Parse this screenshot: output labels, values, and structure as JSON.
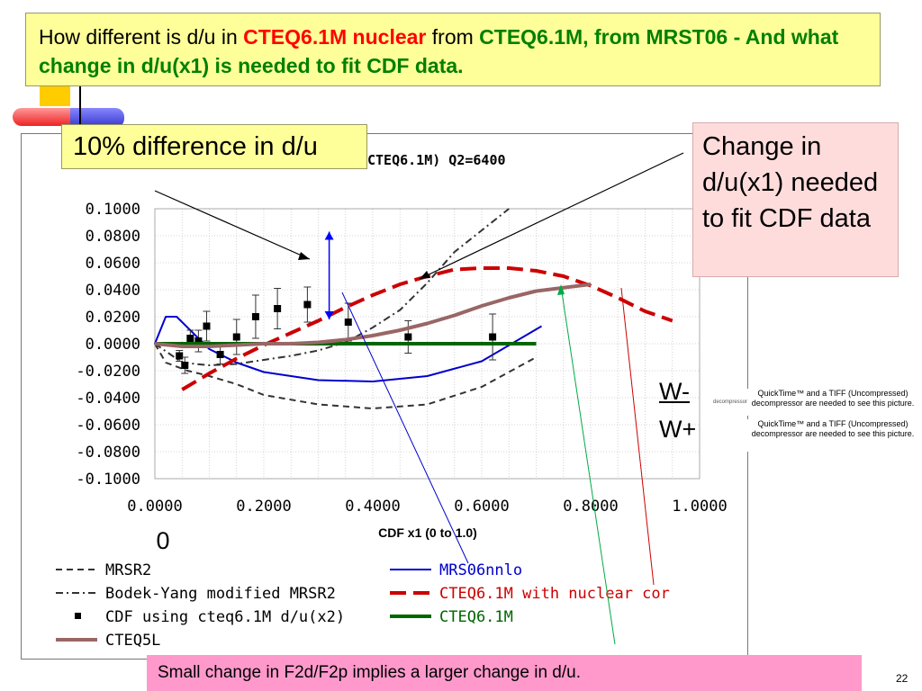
{
  "slide": {
    "title_parts": {
      "p1": "How different is  d/u in ",
      "p2": "CTEQ6.1M nuclear",
      "p3": " from ",
      "p4": "CTEQ6.1M, from MRST06 - And what change in d/u(x1) is needed to fit CDF data."
    },
    "callout_left": "10% difference in d/u",
    "callout_right": "Change in d/u(x1) needed to fit CDF data",
    "bottom_text": "Small change in F2d/F2p implies a larger change in d/u.",
    "w_minus": "W-",
    "w_plus": "W+",
    "quicktime_1": "QuickTime™ and a TIFF (Uncompressed) decompressor are needed to see this picture.",
    "quicktime_2": "QuickTime™ and a TIFF (Uncompressed) decompressor are needed to see this picture.",
    "quicktime_small": "decompressor",
    "page_number": "22",
    "colors": {
      "title_bg": "#ffff99",
      "callout_right_bg": "#ffdcdc",
      "bottom_bg": "#ff99cc"
    }
  },
  "chart_data": {
    "type": "line",
    "title_visible": "CTEQ6.1M) Q2=6400",
    "xlabel": "CDF x1   (0 to 1.0)",
    "xlim": [
      0,
      1
    ],
    "ylim": [
      -0.1,
      0.1
    ],
    "xticks": [
      "0.0000",
      "0.2000",
      "0.4000",
      "0.6000",
      "0.8000",
      "1.0000"
    ],
    "yticks": [
      "0.1000",
      "0.0800",
      "0.0600",
      "0.0400",
      "0.0200",
      "0.0000",
      "-0.0200",
      "-0.0400",
      "-0.0600",
      "-0.0800",
      "-0.1000"
    ],
    "extra_label": "0",
    "grid": true,
    "legend_position": "bottom",
    "series": [
      {
        "name": "MRSR2",
        "style": "dashed",
        "color": "#333333",
        "x": [
          0.0,
          0.02,
          0.06,
          0.1,
          0.15,
          0.2,
          0.3,
          0.4,
          0.5,
          0.6,
          0.7
        ],
        "y": [
          0.0,
          -0.014,
          -0.02,
          -0.024,
          -0.03,
          -0.038,
          -0.045,
          -0.048,
          -0.045,
          -0.032,
          -0.01
        ]
      },
      {
        "name": "MRS06nnlo",
        "style": "solid",
        "color": "#0000cc",
        "x": [
          0.0,
          0.02,
          0.04,
          0.06,
          0.1,
          0.15,
          0.2,
          0.3,
          0.4,
          0.5,
          0.6,
          0.71
        ],
        "y": [
          0.0,
          0.02,
          0.02,
          0.012,
          -0.004,
          -0.014,
          -0.021,
          -0.027,
          -0.028,
          -0.024,
          -0.013,
          0.013
        ]
      },
      {
        "name": "Bodek-Yang modified MRSR2",
        "style": "dashdot",
        "color": "#333333",
        "x": [
          0.0,
          0.05,
          0.1,
          0.15,
          0.2,
          0.25,
          0.3,
          0.35,
          0.4,
          0.45,
          0.5,
          0.55,
          0.65
        ],
        "y": [
          0.0,
          -0.014,
          -0.016,
          -0.015,
          -0.012,
          -0.009,
          -0.005,
          0.001,
          0.012,
          0.025,
          0.045,
          0.068,
          0.1
        ]
      },
      {
        "name": "CTEQ6.1M with nuclear cor",
        "style": "longdash",
        "color": "#cc0000",
        "x": [
          0.05,
          0.1,
          0.15,
          0.2,
          0.25,
          0.3,
          0.35,
          0.4,
          0.45,
          0.5,
          0.55,
          0.6,
          0.65,
          0.7,
          0.75,
          0.8,
          0.85,
          0.9,
          0.95
        ],
        "y": [
          -0.034,
          -0.022,
          -0.011,
          -0.001,
          0.008,
          0.017,
          0.027,
          0.036,
          0.044,
          0.05,
          0.055,
          0.056,
          0.056,
          0.054,
          0.05,
          0.043,
          0.034,
          0.024,
          0.017
        ]
      },
      {
        "name": "CDF using cteq6.1M d/u(x2)",
        "style": "points",
        "color": "#000000",
        "x": [
          0.045,
          0.055,
          0.065,
          0.08,
          0.095,
          0.12,
          0.15,
          0.185,
          0.225,
          0.28,
          0.355,
          0.465,
          0.62
        ],
        "y": [
          -0.009,
          -0.016,
          0.004,
          0.002,
          0.013,
          -0.008,
          0.005,
          0.02,
          0.026,
          0.029,
          0.016,
          0.005,
          0.005
        ],
        "err": [
          0.004,
          0.006,
          0.006,
          0.008,
          0.011,
          0.007,
          0.013,
          0.016,
          0.015,
          0.013,
          0.014,
          0.012,
          0.017
        ]
      },
      {
        "name": "CTEQ6.1M",
        "style": "solid",
        "color": "#006600",
        "x": [
          0.0,
          0.1,
          0.2,
          0.3,
          0.4,
          0.5,
          0.6,
          0.7
        ],
        "y": [
          0.0,
          0.0,
          0.0,
          0.0,
          0.0,
          0.0,
          0.0,
          0.0
        ]
      },
      {
        "name": "CTEQ5L",
        "style": "solid",
        "color": "#996666",
        "x": [
          0.0,
          0.05,
          0.1,
          0.15,
          0.2,
          0.25,
          0.3,
          0.35,
          0.4,
          0.45,
          0.5,
          0.55,
          0.6,
          0.65,
          0.7,
          0.8
        ],
        "y": [
          0.0,
          -0.002,
          -0.002,
          -0.001,
          0.0,
          0.0,
          0.001,
          0.003,
          0.006,
          0.01,
          0.015,
          0.021,
          0.028,
          0.034,
          0.039,
          0.044
        ]
      }
    ],
    "legend": [
      {
        "label": "MRSR2",
        "series": 0,
        "col": 0,
        "row": 0
      },
      {
        "label": "MRS06nnlo",
        "series": 1,
        "col": 1,
        "row": 0
      },
      {
        "label": "Bodek-Yang modified MRSR2",
        "series": 2,
        "col": 0,
        "row": 1
      },
      {
        "label": "CTEQ6.1M with nuclear cor",
        "series": 3,
        "col": 1,
        "row": 1
      },
      {
        "label": "CDF using cteq6.1M d/u(x2)",
        "series": 4,
        "col": 0,
        "row": 2
      },
      {
        "label": "CTEQ6.1M",
        "series": 5,
        "col": 1,
        "row": 2
      },
      {
        "label": "CTEQ5L",
        "series": 6,
        "col": 0,
        "row": 3
      }
    ],
    "annotation_arrow": {
      "x": 0.32,
      "y_from": 0.018,
      "y_to": 0.083,
      "color": "#0000ff"
    }
  }
}
